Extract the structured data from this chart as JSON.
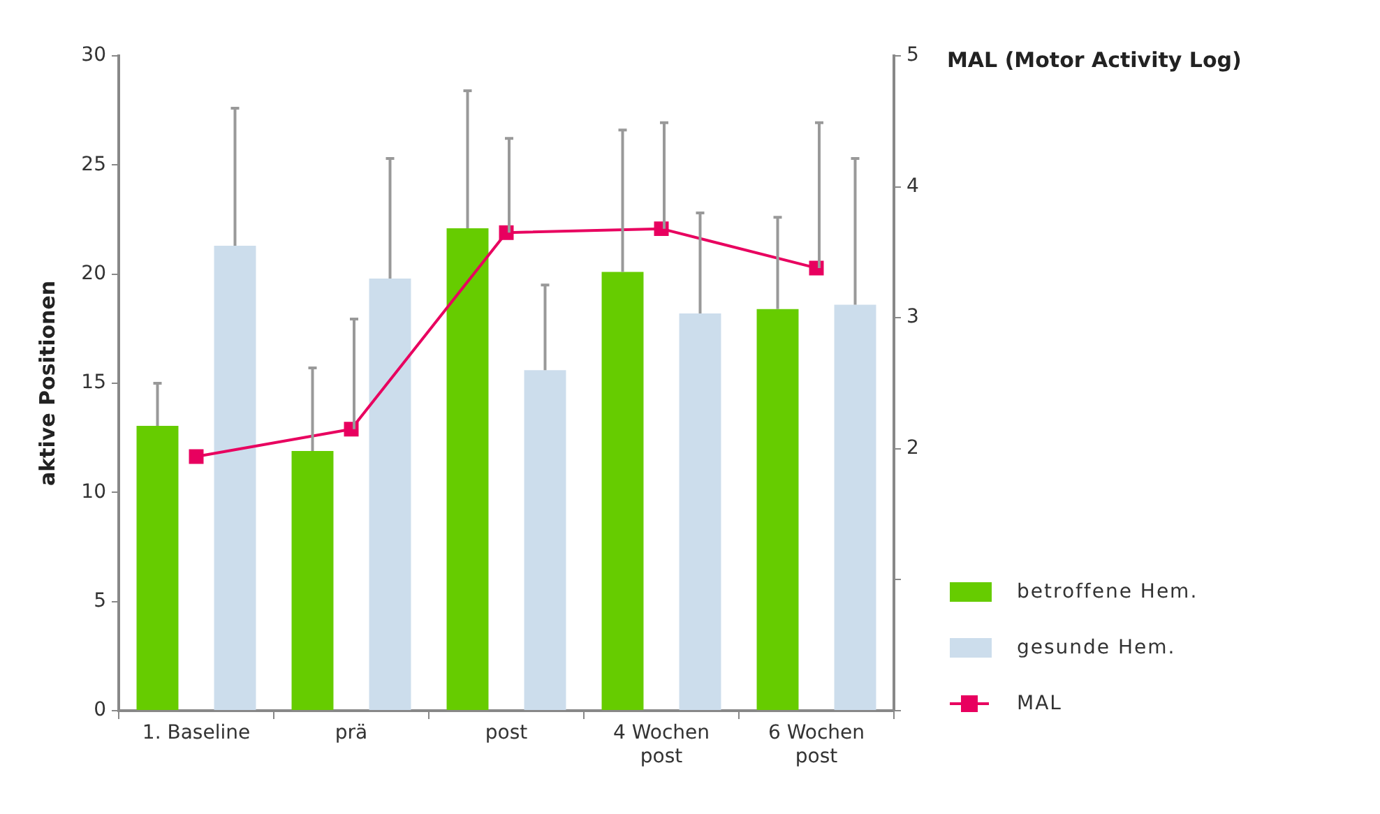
{
  "chart_data": {
    "type": "bar",
    "ylabel": "aktive Positionen",
    "y2label": "MAL (Motor Activity Log)",
    "categories": [
      "1. Baseline",
      "prä",
      "post",
      "4 Wochen post",
      "6 Wochen post"
    ],
    "series": [
      {
        "name": "betroffene Hem.",
        "color": "#66cc00",
        "values": [
          13.05,
          11.9,
          22.1,
          20.1,
          18.4
        ],
        "errors": [
          [
            13.05,
            15.0
          ],
          [
            11.9,
            15.7
          ],
          [
            22.1,
            28.4
          ],
          [
            20.1,
            26.6
          ],
          [
            18.4,
            22.6
          ]
        ]
      },
      {
        "name": "gesunde Hem.",
        "color": "#ccddec",
        "values": [
          21.3,
          19.8,
          15.6,
          18.2,
          18.6
        ],
        "errors": [
          [
            21.3,
            27.6
          ],
          [
            19.8,
            25.3
          ],
          [
            15.6,
            19.5
          ],
          [
            18.2,
            22.8
          ],
          [
            18.6,
            25.3
          ]
        ]
      },
      {
        "name": "MAL",
        "type": "line",
        "axis": "y2",
        "color": "#e8005f",
        "marker": "square",
        "values": [
          1.94,
          2.15,
          3.65,
          3.68,
          3.38
        ],
        "errors": [
          null,
          [
            2.15,
            2.99
          ],
          [
            3.65,
            4.37
          ],
          [
            3.68,
            4.49
          ],
          [
            3.38,
            4.49
          ]
        ]
      }
    ],
    "ylim": [
      0,
      30
    ],
    "yticks": [
      0,
      5,
      10,
      15,
      20,
      25,
      30
    ],
    "y2lim": [
      0,
      5
    ],
    "y2ticks": [
      {
        "value": 0,
        "label": null
      },
      {
        "value": 1,
        "label": null
      },
      2,
      3,
      4,
      5
    ],
    "grid": false,
    "legend": "right"
  }
}
